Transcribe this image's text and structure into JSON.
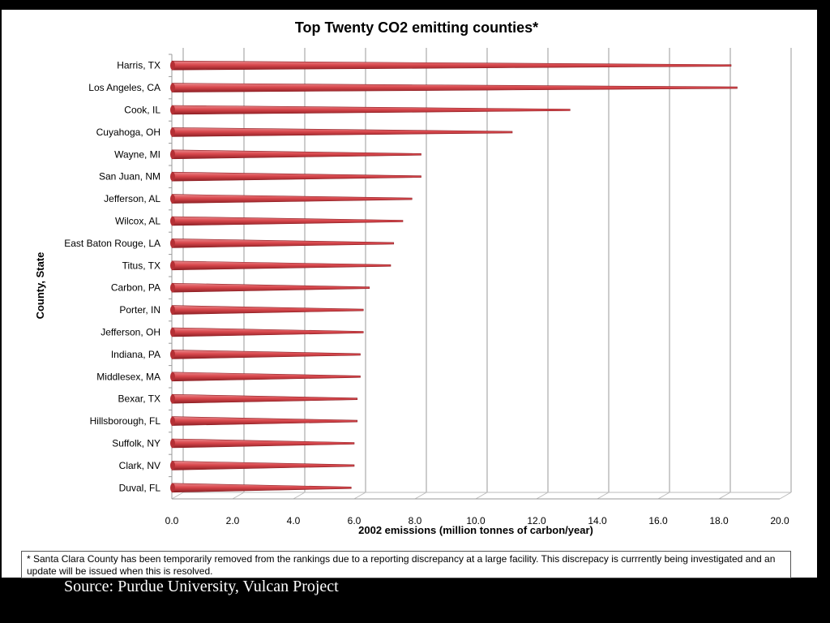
{
  "chart_data": {
    "type": "bar",
    "orientation": "horizontal",
    "title": "Top Twenty CO2 emitting counties*",
    "xlabel": "2002 emissions (million tonnes of carbon/year)",
    "ylabel": "County, State",
    "xlim": [
      0,
      20
    ],
    "xticks": [
      "0.0",
      "2.0",
      "4.0",
      "6.0",
      "8.0",
      "10.0",
      "12.0",
      "14.0",
      "16.0",
      "18.0",
      "20.0"
    ],
    "categories": [
      "Harris, TX",
      "Los Angeles, CA",
      "Cook, IL",
      "Cuyahoga, OH",
      "Wayne, MI",
      "San Juan, NM",
      "Jefferson, AL",
      "Wilcox, AL",
      "East Baton Rouge, LA",
      "Titus, TX",
      "Carbon, PA",
      "Porter, IN",
      "Jefferson, OH",
      "Indiana, PA",
      "Middlesex, MA",
      "Bexar, TX",
      "Hillsborough, FL",
      "Suffolk, NY",
      "Clark, NV",
      "Duval, FL"
    ],
    "values": [
      18.4,
      18.6,
      13.1,
      11.2,
      8.2,
      8.2,
      7.9,
      7.6,
      7.3,
      7.2,
      6.5,
      6.3,
      6.3,
      6.2,
      6.2,
      6.1,
      6.1,
      6.0,
      6.0,
      5.9
    ],
    "grid": true,
    "bar_color": "#d9484d"
  },
  "footnote": "* Santa Clara County has been temporarily removed from the rankings due to a reporting discrepancy at a large facility. This discrepacy is currrently being investigated and an update will be issued when this is resolved.",
  "source": "Source: Purdue University, Vulcan Project"
}
